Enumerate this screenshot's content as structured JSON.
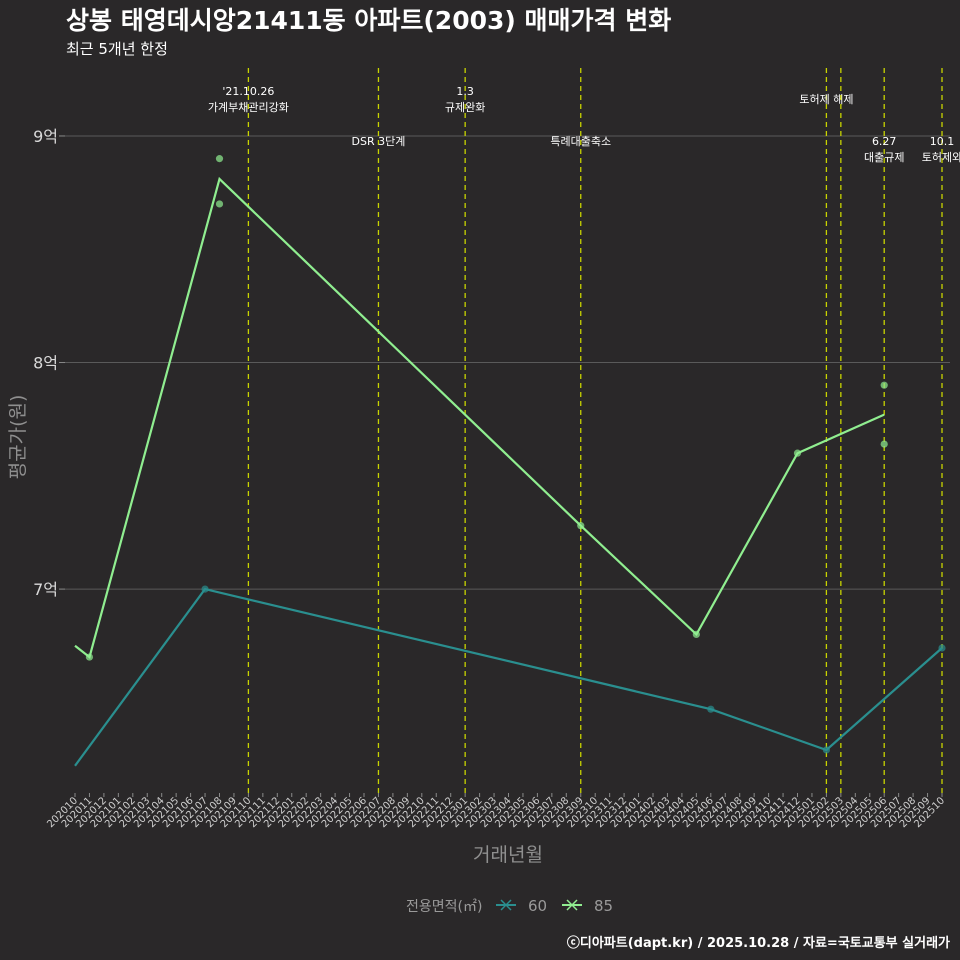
{
  "chart_data": {
    "type": "line",
    "title": "상봉 태영데시앙21411동 아파트(2003) 매매가격 변화",
    "subtitle": "최근 5개년 한정",
    "xlabel": "거래년월",
    "ylabel": "평균가(원)",
    "legend_title": "전용면적(㎡)",
    "caption": "ⓒ디아파트(dapt.kr) / 2025.10.28 / 자료=국토교통부 실거래가",
    "y_ticks": [
      {
        "value": 70000,
        "label": "7억"
      },
      {
        "value": 80000,
        "label": "8억"
      },
      {
        "value": 90000,
        "label": "9억"
      }
    ],
    "ylim": [
      61000,
      93000
    ],
    "categories": [
      "202010",
      "202011",
      "202012",
      "202101",
      "202102",
      "202103",
      "202104",
      "202105",
      "202106",
      "202107",
      "202108",
      "202109",
      "202110",
      "202111",
      "202112",
      "202201",
      "202202",
      "202203",
      "202204",
      "202205",
      "202206",
      "202207",
      "202208",
      "202209",
      "202210",
      "202211",
      "202212",
      "202301",
      "202302",
      "202303",
      "202304",
      "202305",
      "202306",
      "202307",
      "202308",
      "202309",
      "202310",
      "202311",
      "202312",
      "202401",
      "202402",
      "202403",
      "202404",
      "202405",
      "202406",
      "202407",
      "202408",
      "202409",
      "202410",
      "202411",
      "202412",
      "202501",
      "202502",
      "202503",
      "202504",
      "202505",
      "202506",
      "202507",
      "202508",
      "202509",
      "202510"
    ],
    "series": [
      {
        "name": "60",
        "color": "#2a8f8f",
        "line": [
          {
            "x": "202010",
            "y": 62200
          },
          {
            "x": "202107",
            "y": 70000
          },
          {
            "x": "202406",
            "y": 64700
          },
          {
            "x": "202502",
            "y": 62900
          },
          {
            "x": "202510",
            "y": 67400
          }
        ],
        "points": [
          {
            "x": "202107",
            "y": 70000
          },
          {
            "x": "202406",
            "y": 64700
          },
          {
            "x": "202502",
            "y": 62900
          },
          {
            "x": "202510",
            "y": 67400
          }
        ]
      },
      {
        "name": "85",
        "color": "#90ee90",
        "line": [
          {
            "x": "202010",
            "y": 67500
          },
          {
            "x": "202011",
            "y": 67000
          },
          {
            "x": "202108",
            "y": 88100
          },
          {
            "x": "202309",
            "y": 72800
          },
          {
            "x": "202405",
            "y": 68000
          },
          {
            "x": "202412",
            "y": 76000
          },
          {
            "x": "202506",
            "y": 77700
          }
        ],
        "points": [
          {
            "x": "202011",
            "y": 67000
          },
          {
            "x": "202108",
            "y": 89000
          },
          {
            "x": "202108",
            "y": 87000
          },
          {
            "x": "202309",
            "y": 72800
          },
          {
            "x": "202405",
            "y": 68000
          },
          {
            "x": "202412",
            "y": 76000
          },
          {
            "x": "202506",
            "y": 79000
          },
          {
            "x": "202506",
            "y": 76400
          }
        ]
      }
    ],
    "events": [
      {
        "x": "202110",
        "lines": [
          "'21.10.26",
          "가계부채관리강화"
        ],
        "tier": "high"
      },
      {
        "x": "202207",
        "lines": [
          "DSR 3단계"
        ],
        "tier": "low"
      },
      {
        "x": "202301",
        "lines": [
          "1.3",
          "규제완화"
        ],
        "tier": "high"
      },
      {
        "x": "202309",
        "lines": [
          "특례대출축소"
        ],
        "tier": "low"
      },
      {
        "x": "202502",
        "lines": [
          "토허제 해제"
        ],
        "tier": "mid"
      },
      {
        "x": "202503",
        "lines": [],
        "tier": "none"
      },
      {
        "x": "202506",
        "lines": [
          "6.27",
          "대출규제"
        ],
        "tier": "low"
      },
      {
        "x": "202510",
        "lines": [
          "10.1",
          "토허제와"
        ],
        "tier": "low"
      }
    ]
  }
}
